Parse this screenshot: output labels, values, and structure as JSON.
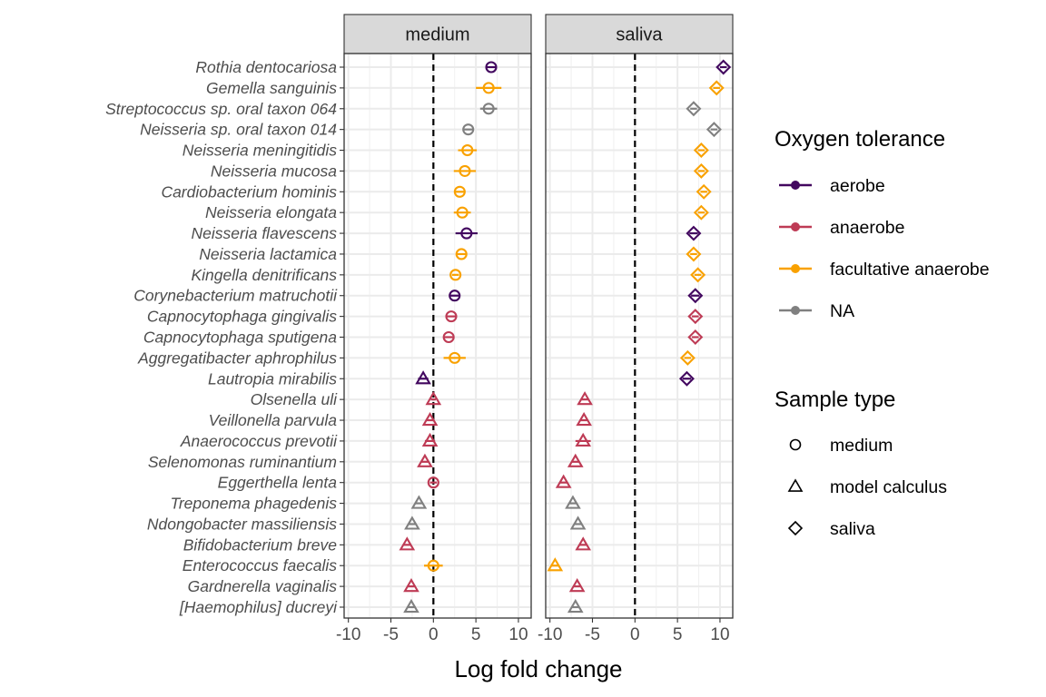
{
  "chart_data": {
    "type": "scatter",
    "xlabel": "Log fold change",
    "xlim": [
      -10.5,
      11.5
    ],
    "xticks": [
      -10,
      -5,
      0,
      5,
      10
    ],
    "xtick_labels": [
      "-10",
      "-5",
      "0",
      "5",
      "10"
    ],
    "reference_line_x": 0,
    "grid": true,
    "panels": [
      "medium",
      "saliva"
    ],
    "species": [
      "Rothia dentocariosa",
      "Gemella sanguinis",
      "Streptococcus sp. oral taxon 064",
      "Neisseria sp. oral taxon 014",
      "Neisseria meningitidis",
      "Neisseria mucosa",
      "Cardiobacterium hominis",
      "Neisseria elongata",
      "Neisseria flavescens",
      "Neisseria lactamica",
      "Kingella denitrificans",
      "Corynebacterium matruchotii",
      "Capnocytophaga gingivalis",
      "Capnocytophaga sputigena",
      "Aggregatibacter aphrophilus",
      "Lautropia mirabilis",
      "Olsenella uli",
      "Veillonella parvula",
      "Anaerococcus prevotii",
      "Selenomonas ruminantium",
      "Eggerthella lenta",
      "Treponema phagedenis",
      "Ndongobacter massiliensis",
      "Bifidobacterium breve",
      "Enterococcus faecalis",
      "Gardnerella vaginalis",
      "[Haemophilus] ducreyi"
    ],
    "oxygen": [
      "aerobe",
      "facultative anaerobe",
      "NA",
      "NA",
      "facultative anaerobe",
      "facultative anaerobe",
      "facultative anaerobe",
      "facultative anaerobe",
      "aerobe",
      "facultative anaerobe",
      "facultative anaerobe",
      "aerobe",
      "anaerobe",
      "anaerobe",
      "facultative anaerobe",
      "aerobe",
      "anaerobe",
      "anaerobe",
      "anaerobe",
      "anaerobe",
      "anaerobe",
      "NA",
      "NA",
      "anaerobe",
      "facultative anaerobe",
      "anaerobe",
      "NA"
    ],
    "series": [
      {
        "panel": "medium",
        "values": [
          6.8,
          6.5,
          6.5,
          4.1,
          4.0,
          3.7,
          3.1,
          3.4,
          3.9,
          3.3,
          2.6,
          2.5,
          2.1,
          1.8,
          2.5,
          -1.2,
          0.0,
          -0.4,
          -0.4,
          -1.0,
          0.0,
          -1.7,
          -2.5,
          -3.1,
          0.0,
          -2.6,
          -2.6
        ],
        "ci": [
          0.5,
          1.5,
          1.0,
          0.6,
          1.1,
          1.3,
          0.5,
          1.0,
          1.3,
          0.6,
          0.4,
          0.5,
          0.5,
          0.5,
          1.3,
          0.6,
          0.3,
          0.5,
          0.6,
          0.5,
          0.4,
          0.5,
          0.5,
          0.5,
          1.1,
          0.5,
          0.5
        ],
        "shapes": [
          "medium",
          "medium",
          "medium",
          "medium",
          "medium",
          "medium",
          "medium",
          "medium",
          "medium",
          "medium",
          "medium",
          "medium",
          "medium",
          "medium",
          "medium",
          "model calculus",
          "model calculus",
          "model calculus",
          "model calculus",
          "model calculus",
          "medium",
          "model calculus",
          "model calculus",
          "model calculus",
          "medium",
          "model calculus",
          "model calculus"
        ]
      },
      {
        "panel": "saliva",
        "values": [
          10.4,
          9.6,
          6.9,
          9.3,
          7.8,
          7.8,
          8.1,
          7.8,
          6.9,
          6.9,
          7.4,
          7.1,
          7.1,
          7.1,
          6.2,
          6.1,
          null,
          null,
          null,
          null,
          null,
          null,
          null,
          null,
          null,
          null,
          null
        ],
        "ci": [
          0.4,
          0.4,
          0.4,
          0.4,
          0.4,
          0.4,
          0.4,
          0.4,
          0.5,
          0.4,
          0.4,
          0.5,
          0.4,
          0.4,
          0.4,
          0.5,
          null,
          null,
          null,
          null,
          null,
          null,
          null,
          null,
          null,
          null,
          null
        ],
        "shapes": [
          "saliva",
          "saliva",
          "saliva",
          "saliva",
          "saliva",
          "saliva",
          "saliva",
          "saliva",
          "saliva",
          "saliva",
          "saliva",
          "saliva",
          "saliva",
          "saliva",
          "saliva",
          "saliva",
          null,
          null,
          null,
          null,
          null,
          null,
          null,
          null,
          null,
          null,
          null
        ]
      },
      {
        "panel": "saliva",
        "values": [
          null,
          null,
          null,
          null,
          null,
          null,
          null,
          null,
          null,
          null,
          null,
          null,
          null,
          null,
          null,
          null,
          -5.9,
          -6.0,
          -6.1,
          -7.0,
          -8.4,
          -7.3,
          -6.7,
          -6.1,
          -9.4,
          -6.8,
          -7.0
        ],
        "ci": [
          null,
          null,
          null,
          null,
          null,
          null,
          null,
          null,
          null,
          null,
          null,
          null,
          null,
          null,
          null,
          null,
          0.4,
          0.4,
          0.9,
          0.4,
          0.4,
          0.4,
          0.4,
          0.4,
          0.4,
          0.4,
          0.4
        ],
        "shapes": [
          null,
          null,
          null,
          null,
          null,
          null,
          null,
          null,
          null,
          null,
          null,
          null,
          null,
          null,
          null,
          null,
          "model calculus",
          "model calculus",
          "model calculus",
          "model calculus",
          "model calculus",
          "model calculus",
          "model calculus",
          "model calculus",
          "model calculus",
          "model calculus",
          "model calculus"
        ]
      }
    ],
    "legend": {
      "placement": "right",
      "oxygen_title": "Oxygen tolerance",
      "oxygen_items": [
        {
          "label": "aerobe",
          "color": "#42075F"
        },
        {
          "label": "anaerobe",
          "color": "#BE3B55"
        },
        {
          "label": "facultative anaerobe",
          "color": "#F9A100"
        },
        {
          "label": "NA",
          "color": "#808080"
        }
      ],
      "shape_title": "Sample type",
      "shape_items": [
        {
          "label": "medium",
          "shape": "circle"
        },
        {
          "label": "model calculus",
          "shape": "triangle"
        },
        {
          "label": "saliva",
          "shape": "diamond"
        }
      ]
    }
  }
}
